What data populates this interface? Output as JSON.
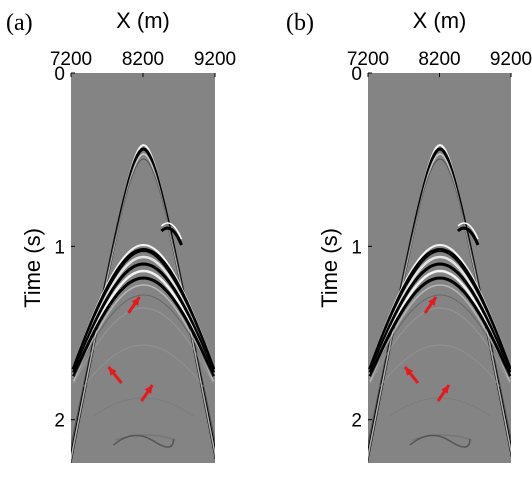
{
  "chart_data": [
    {
      "type": "image",
      "panel_label": "(a)",
      "xlabel": "X (m)",
      "ylabel": "Time (s)",
      "xlim": [
        7200,
        9200
      ],
      "xticks": [
        7200,
        8200,
        9200
      ],
      "ylim": [
        0,
        2.25
      ],
      "yticks": [
        0,
        1,
        2
      ]
    },
    {
      "type": "image",
      "panel_label": "(b)",
      "xlabel": "X (m)",
      "ylabel": "Time (s)",
      "xlim": [
        7200,
        9200
      ],
      "xticks": [
        7200,
        8200,
        9200
      ],
      "ylim": [
        0,
        2.25
      ],
      "yticks": [
        0,
        1,
        2
      ]
    }
  ]
}
